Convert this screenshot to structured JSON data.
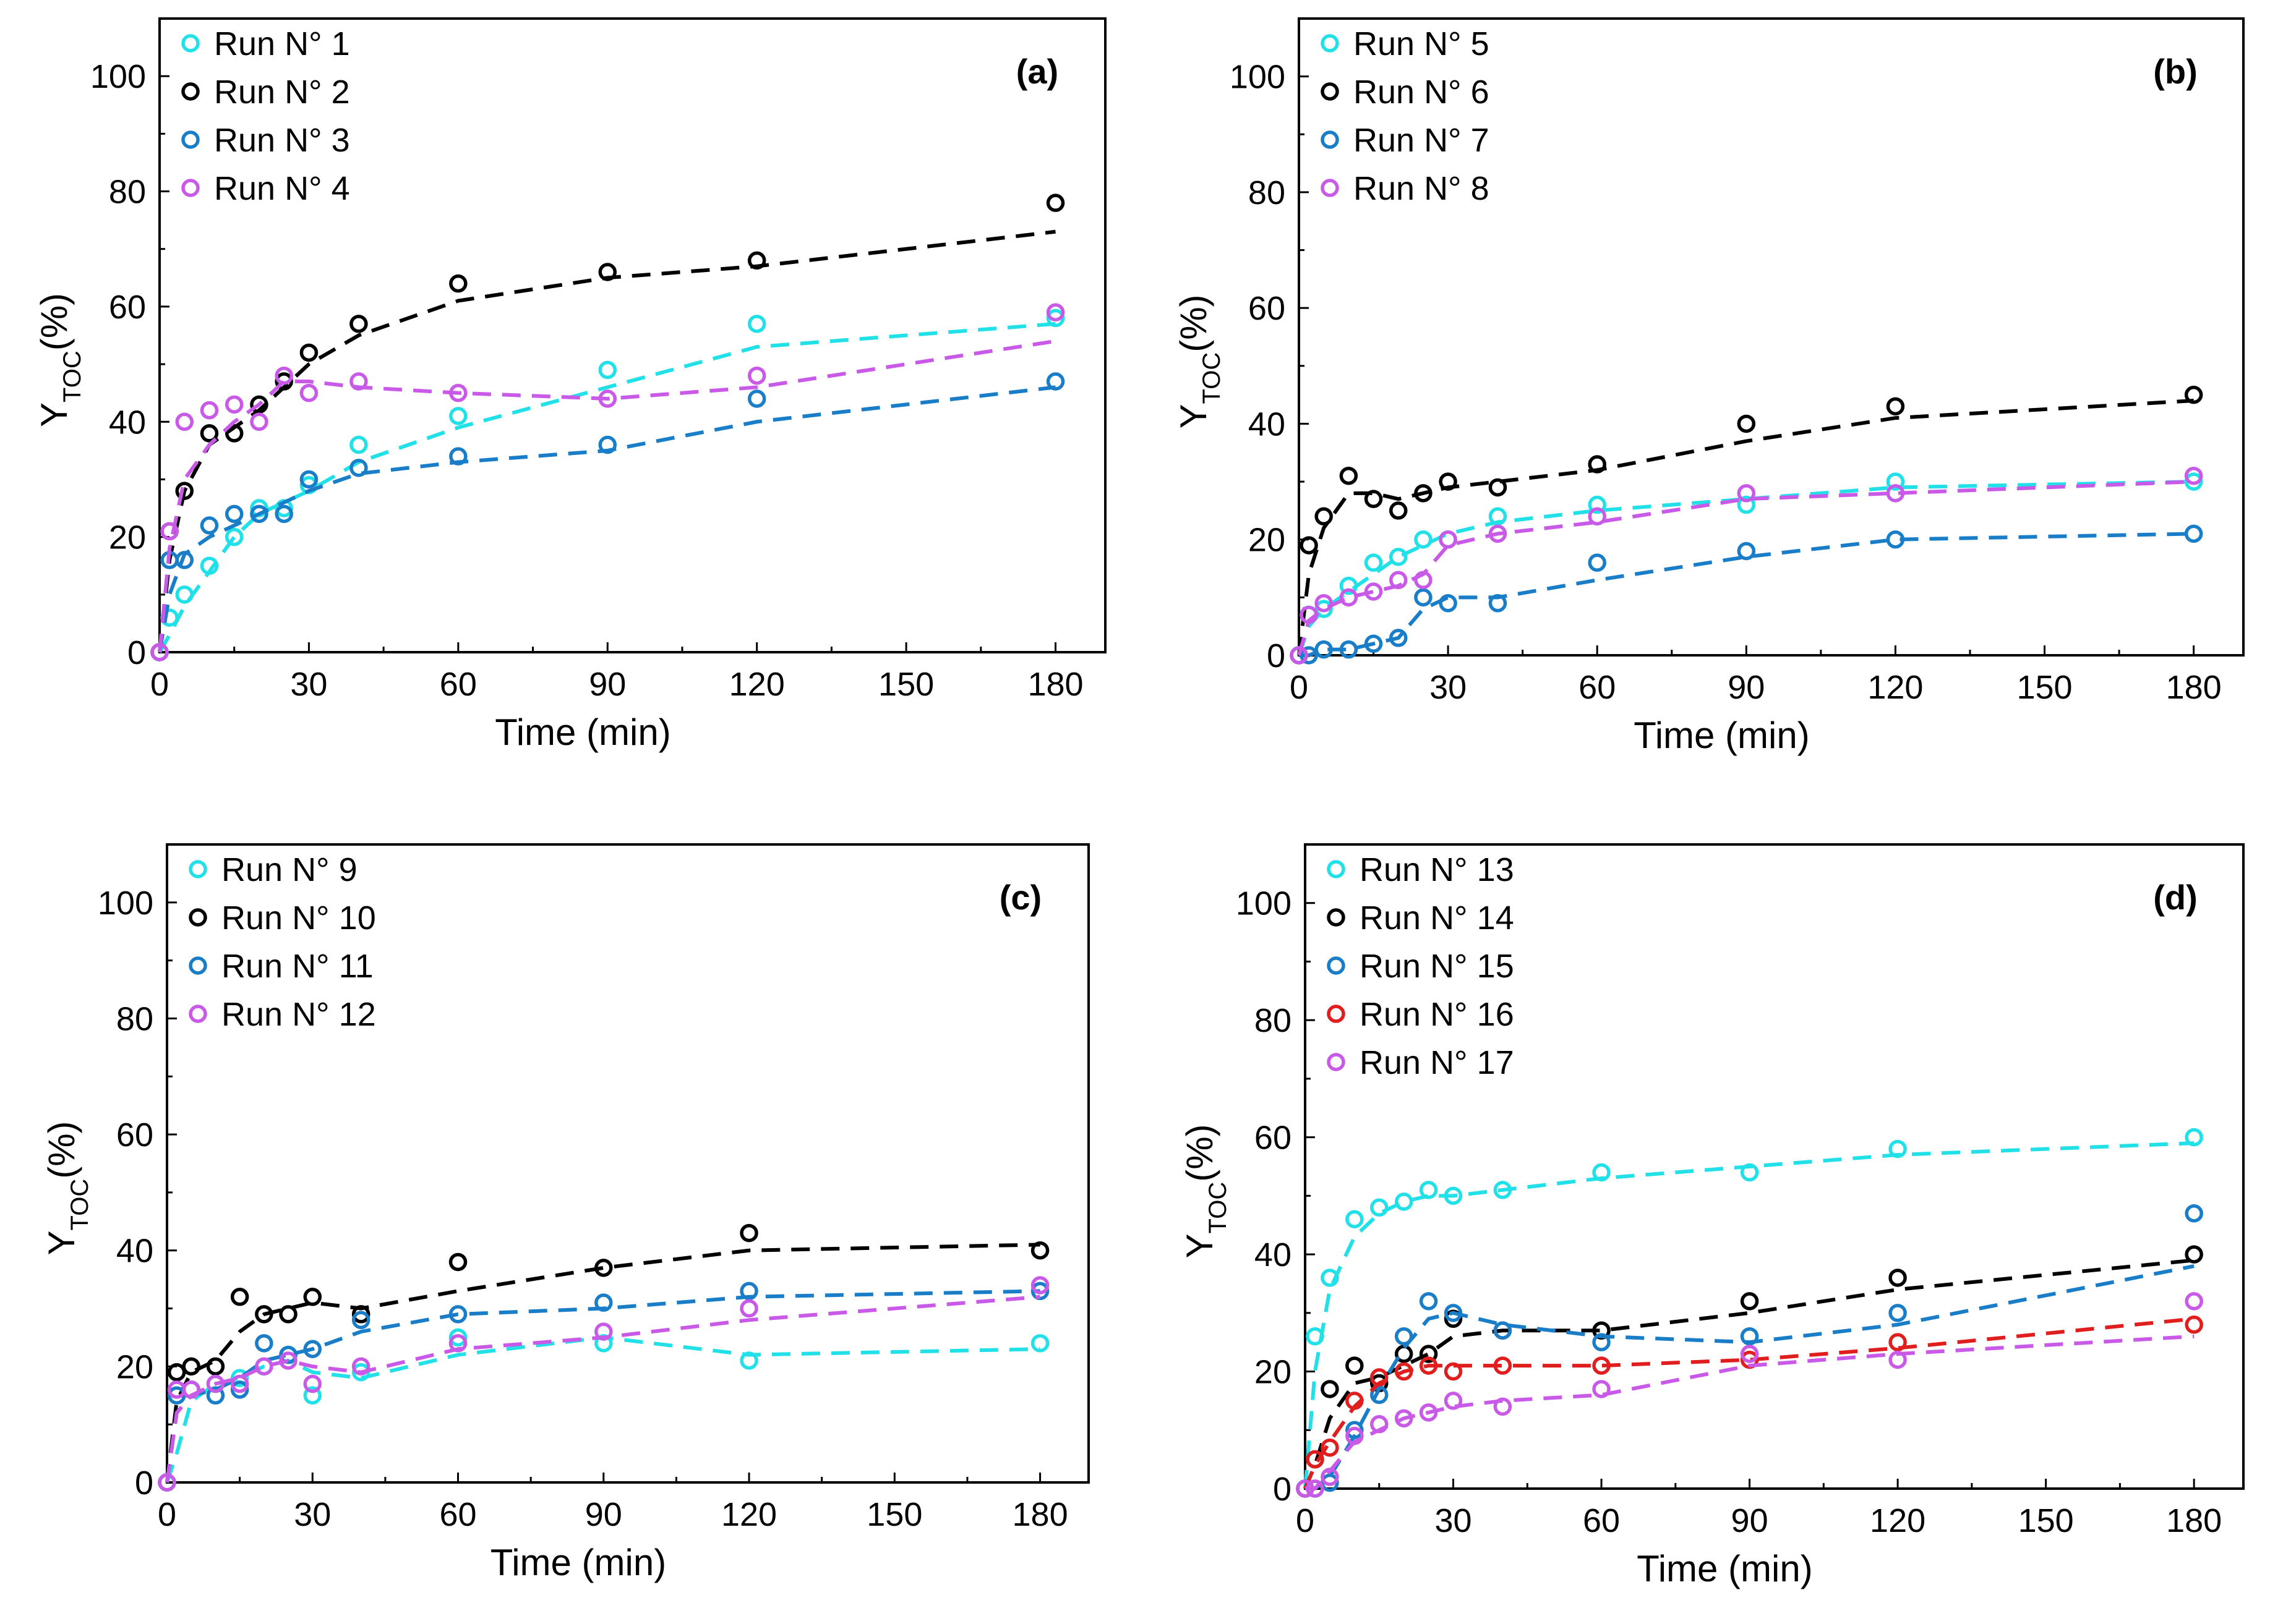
{
  "chart_data": [
    {
      "type": "scatter",
      "panel": "(a)",
      "xlabel": "Time (min)",
      "ylabel": "Y",
      "ylabel_sub": "TOC",
      "ylabel_unit": "(%)",
      "xlim": [
        0,
        190
      ],
      "ylim": [
        0,
        110
      ],
      "xticks": [
        0,
        30,
        60,
        90,
        120,
        150,
        180
      ],
      "yticks": [
        0,
        20,
        40,
        60,
        80,
        100
      ],
      "legend_position": "top-left",
      "series": [
        {
          "name": "Run N° 1",
          "color": "#22e0e8",
          "x": [
            0,
            2,
            5,
            10,
            15,
            20,
            25,
            30,
            40,
            60,
            90,
            120,
            180
          ],
          "y": [
            0,
            6,
            10,
            15,
            20,
            25,
            25,
            29,
            36,
            41,
            49,
            57,
            58
          ],
          "fit_x": [
            0,
            2,
            5,
            10,
            15,
            20,
            25,
            30,
            40,
            60,
            90,
            120,
            180
          ],
          "fit_y": [
            0,
            3,
            8,
            14,
            20,
            24,
            26,
            28,
            33,
            39,
            46,
            53,
            57
          ]
        },
        {
          "name": "Run N° 2",
          "color": "#000000",
          "x": [
            0,
            2,
            5,
            10,
            15,
            20,
            25,
            30,
            40,
            60,
            90,
            120,
            180
          ],
          "y": [
            0,
            21,
            28,
            38,
            38,
            43,
            47,
            52,
            57,
            64,
            66,
            68,
            78
          ],
          "fit_x": [
            0,
            2,
            5,
            10,
            15,
            20,
            25,
            30,
            40,
            60,
            90,
            120,
            180
          ],
          "fit_y": [
            0,
            16,
            28,
            36,
            39,
            42,
            46,
            50,
            55,
            61,
            65,
            67,
            73
          ]
        },
        {
          "name": "Run N° 3",
          "color": "#1a7dc8",
          "x": [
            0,
            2,
            5,
            10,
            15,
            20,
            25,
            30,
            40,
            60,
            90,
            120,
            180
          ],
          "y": [
            0,
            16,
            16,
            22,
            24,
            24,
            24,
            30,
            32,
            34,
            36,
            44,
            47
          ],
          "fit_x": [
            0,
            2,
            5,
            10,
            15,
            20,
            25,
            30,
            40,
            60,
            90,
            120,
            180
          ],
          "fit_y": [
            0,
            10,
            17,
            20,
            22,
            24,
            26,
            28,
            31,
            33,
            35,
            40,
            46
          ]
        },
        {
          "name": "Run N° 4",
          "color": "#c95ae8",
          "x": [
            0,
            2,
            5,
            10,
            15,
            20,
            25,
            30,
            40,
            60,
            90,
            120,
            180
          ],
          "y": [
            0,
            21,
            40,
            42,
            43,
            40,
            48,
            45,
            47,
            45,
            44,
            48,
            59
          ],
          "fit_x": [
            0,
            2,
            5,
            10,
            15,
            20,
            25,
            30,
            40,
            60,
            90,
            120,
            180
          ],
          "fit_y": [
            0,
            18,
            30,
            36,
            40,
            43,
            47,
            47,
            46,
            45,
            44,
            46,
            54
          ]
        }
      ]
    },
    {
      "type": "scatter",
      "panel": "(b)",
      "xlabel": "Time (min)",
      "ylabel": "Y",
      "ylabel_sub": "TOC",
      "ylabel_unit": "(%)",
      "xlim": [
        0,
        190
      ],
      "ylim": [
        0,
        110
      ],
      "xticks": [
        0,
        30,
        60,
        90,
        120,
        150,
        180
      ],
      "yticks": [
        0,
        20,
        40,
        60,
        80,
        100
      ],
      "legend_position": "top-left",
      "series": [
        {
          "name": "Run N° 5",
          "color": "#22e0e8",
          "x": [
            0,
            2,
            5,
            10,
            15,
            20,
            25,
            30,
            40,
            60,
            90,
            120,
            180
          ],
          "y": [
            0,
            7,
            8,
            12,
            16,
            17,
            20,
            20,
            24,
            26,
            26,
            30,
            30
          ],
          "fit_x": [
            0,
            2,
            5,
            10,
            15,
            20,
            25,
            30,
            40,
            60,
            90,
            120,
            180
          ],
          "fit_y": [
            0,
            5,
            8,
            11,
            14,
            17,
            19,
            21,
            23,
            25,
            27,
            29,
            30
          ]
        },
        {
          "name": "Run N° 6",
          "color": "#000000",
          "x": [
            0,
            2,
            5,
            10,
            15,
            20,
            25,
            30,
            40,
            60,
            90,
            120,
            180
          ],
          "y": [
            0,
            19,
            24,
            31,
            27,
            25,
            28,
            30,
            29,
            33,
            40,
            43,
            45
          ],
          "fit_x": [
            0,
            2,
            5,
            10,
            15,
            20,
            25,
            30,
            40,
            60,
            90,
            120,
            180
          ],
          "fit_y": [
            0,
            14,
            22,
            28,
            28,
            27,
            28,
            29,
            30,
            32,
            37,
            41,
            44
          ]
        },
        {
          "name": "Run N° 7",
          "color": "#1a7dc8",
          "x": [
            0,
            2,
            5,
            10,
            15,
            20,
            25,
            30,
            40,
            60,
            90,
            120,
            180
          ],
          "y": [
            0,
            0,
            1,
            1,
            2,
            3,
            10,
            9,
            9,
            16,
            18,
            20,
            21
          ],
          "fit_x": [
            0,
            2,
            5,
            10,
            15,
            20,
            25,
            30,
            40,
            60,
            90,
            120,
            180
          ],
          "fit_y": [
            0,
            0,
            1,
            1,
            2,
            3,
            8,
            10,
            10,
            13,
            17,
            20,
            21
          ]
        },
        {
          "name": "Run N° 8",
          "color": "#c95ae8",
          "x": [
            0,
            2,
            5,
            10,
            15,
            20,
            25,
            30,
            40,
            60,
            90,
            120,
            180
          ],
          "y": [
            0,
            7,
            9,
            10,
            11,
            13,
            13,
            20,
            21,
            24,
            28,
            28,
            31
          ],
          "fit_x": [
            0,
            2,
            5,
            10,
            15,
            20,
            25,
            30,
            40,
            60,
            90,
            120,
            180
          ],
          "fit_y": [
            0,
            6,
            8,
            10,
            11,
            12,
            14,
            19,
            21,
            23,
            27,
            28,
            30
          ]
        }
      ]
    },
    {
      "type": "scatter",
      "panel": "(c)",
      "xlabel": "Time (min)",
      "ylabel": "Y",
      "ylabel_sub": "TOC",
      "ylabel_unit": "(%)",
      "xlim": [
        0,
        190
      ],
      "ylim": [
        0,
        110
      ],
      "xticks": [
        0,
        30,
        60,
        90,
        120,
        150,
        180
      ],
      "yticks": [
        0,
        20,
        40,
        60,
        80,
        100
      ],
      "legend_position": "top-left",
      "series": [
        {
          "name": "Run N° 9",
          "color": "#22e0e8",
          "x": [
            0,
            2,
            5,
            10,
            15,
            20,
            25,
            30,
            40,
            60,
            90,
            120,
            180
          ],
          "y": [
            0,
            16,
            16,
            17,
            18,
            20,
            22,
            15,
            19,
            25,
            24,
            21,
            24
          ],
          "fit_x": [
            0,
            2,
            5,
            10,
            15,
            20,
            25,
            30,
            40,
            60,
            90,
            120,
            180
          ],
          "fit_y": [
            0,
            5,
            14,
            17,
            18,
            20,
            21,
            19,
            18,
            22,
            25,
            22,
            23
          ]
        },
        {
          "name": "Run N° 10",
          "color": "#000000",
          "x": [
            0,
            2,
            5,
            10,
            15,
            20,
            25,
            30,
            40,
            60,
            90,
            120,
            180
          ],
          "y": [
            0,
            19,
            20,
            20,
            32,
            29,
            29,
            32,
            29,
            38,
            37,
            43,
            40
          ],
          "fit_x": [
            0,
            2,
            5,
            10,
            15,
            20,
            25,
            30,
            40,
            60,
            90,
            120,
            180
          ],
          "fit_y": [
            0,
            14,
            19,
            21,
            26,
            29,
            30,
            31,
            30,
            33,
            37,
            40,
            41
          ]
        },
        {
          "name": "Run N° 11",
          "color": "#1a7dc8",
          "x": [
            0,
            2,
            5,
            10,
            15,
            20,
            25,
            30,
            40,
            60,
            90,
            120,
            180
          ],
          "y": [
            0,
            15,
            16,
            15,
            16,
            24,
            22,
            23,
            28,
            29,
            31,
            33,
            33
          ],
          "fit_x": [
            0,
            2,
            5,
            10,
            15,
            20,
            25,
            30,
            40,
            60,
            90,
            120,
            180
          ],
          "fit_y": [
            0,
            12,
            15,
            16,
            18,
            21,
            22,
            23,
            26,
            29,
            30,
            32,
            33
          ]
        },
        {
          "name": "Run N° 12",
          "color": "#c95ae8",
          "x": [
            0,
            2,
            5,
            10,
            15,
            20,
            25,
            30,
            40,
            60,
            90,
            120,
            180
          ],
          "y": [
            0,
            16,
            16,
            17,
            17,
            20,
            21,
            17,
            20,
            24,
            26,
            30,
            34
          ],
          "fit_x": [
            0,
            2,
            5,
            10,
            15,
            20,
            25,
            30,
            40,
            60,
            90,
            120,
            180
          ],
          "fit_y": [
            0,
            12,
            15,
            17,
            18,
            20,
            21,
            20,
            19,
            23,
            25,
            28,
            32
          ]
        }
      ]
    },
    {
      "type": "scatter",
      "panel": "(d)",
      "xlabel": "Time (min)",
      "ylabel": "Y",
      "ylabel_sub": "TOC",
      "ylabel_unit": "(%)",
      "xlim": [
        0,
        190
      ],
      "ylim": [
        0,
        110
      ],
      "xticks": [
        0,
        30,
        60,
        90,
        120,
        150,
        180
      ],
      "yticks": [
        0,
        20,
        40,
        60,
        80,
        100
      ],
      "legend_position": "top-left",
      "series": [
        {
          "name": "Run N° 13",
          "color": "#22e0e8",
          "x": [
            0,
            2,
            5,
            10,
            15,
            20,
            25,
            30,
            40,
            60,
            90,
            120,
            180
          ],
          "y": [
            0,
            26,
            36,
            46,
            48,
            49,
            51,
            50,
            51,
            54,
            54,
            58,
            60
          ],
          "fit_x": [
            0,
            2,
            5,
            10,
            15,
            20,
            25,
            30,
            40,
            60,
            90,
            120,
            180
          ],
          "fit_y": [
            0,
            20,
            34,
            43,
            47,
            49,
            50,
            50,
            51,
            53,
            55,
            57,
            59
          ]
        },
        {
          "name": "Run N° 14",
          "color": "#000000",
          "x": [
            0,
            2,
            5,
            10,
            15,
            20,
            25,
            30,
            40,
            60,
            90,
            120,
            180
          ],
          "y": [
            0,
            5,
            17,
            21,
            18,
            23,
            23,
            29,
            27,
            27,
            32,
            36,
            40
          ],
          "fit_x": [
            0,
            2,
            5,
            10,
            15,
            20,
            25,
            30,
            40,
            60,
            90,
            120,
            180
          ],
          "fit_y": [
            0,
            4,
            12,
            18,
            19,
            21,
            23,
            26,
            27,
            27,
            30,
            34,
            39
          ]
        },
        {
          "name": "Run N° 15",
          "color": "#1a7dc8",
          "x": [
            0,
            2,
            5,
            10,
            15,
            20,
            25,
            30,
            40,
            60,
            90,
            120,
            180
          ],
          "y": [
            0,
            0,
            1,
            10,
            16,
            26,
            32,
            30,
            27,
            25,
            26,
            30,
            47
          ],
          "fit_x": [
            0,
            2,
            5,
            10,
            15,
            20,
            25,
            30,
            40,
            60,
            90,
            120,
            180
          ],
          "fit_y": [
            0,
            0,
            2,
            9,
            17,
            24,
            29,
            30,
            28,
            26,
            25,
            28,
            38
          ]
        },
        {
          "name": "Run N° 16",
          "color": "#e01e1e",
          "x": [
            0,
            2,
            5,
            10,
            15,
            20,
            25,
            30,
            40,
            60,
            90,
            120,
            180
          ],
          "y": [
            0,
            5,
            7,
            15,
            19,
            20,
            21,
            20,
            21,
            21,
            22,
            25,
            28
          ],
          "fit_x": [
            0,
            2,
            5,
            10,
            15,
            20,
            25,
            30,
            40,
            60,
            90,
            120,
            180
          ],
          "fit_y": [
            0,
            4,
            8,
            14,
            18,
            20,
            21,
            21,
            21,
            21,
            22,
            24,
            29
          ]
        },
        {
          "name": "Run N° 17",
          "color": "#c95ae8",
          "x": [
            0,
            2,
            5,
            10,
            15,
            20,
            25,
            30,
            40,
            60,
            90,
            120,
            180
          ],
          "y": [
            0,
            0,
            2,
            9,
            11,
            12,
            13,
            15,
            14,
            17,
            23,
            22,
            32
          ],
          "fit_x": [
            0,
            2,
            5,
            10,
            15,
            20,
            25,
            30,
            40,
            60,
            90,
            120,
            180
          ],
          "fit_y": [
            0,
            0,
            3,
            8,
            10,
            12,
            13,
            14,
            15,
            16,
            21,
            23,
            26
          ]
        }
      ]
    }
  ]
}
